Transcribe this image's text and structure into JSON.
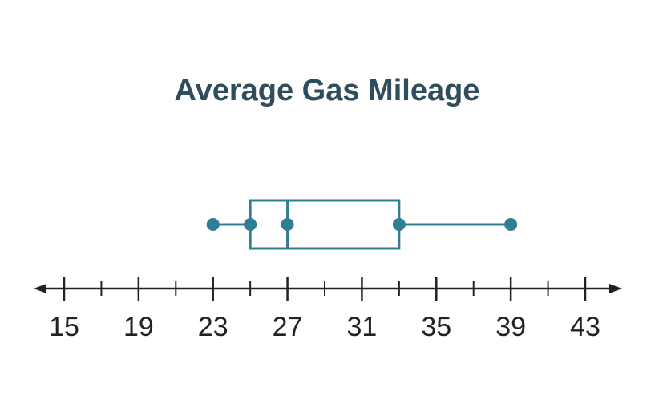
{
  "chart_data": {
    "type": "box",
    "title": "Average Gas Mileage",
    "box": {
      "min": 23,
      "q1": 25,
      "median": 27,
      "q3": 33,
      "max": 39
    },
    "color": "#2f7e93",
    "xlim": [
      15,
      43
    ],
    "xticks": [
      15,
      19,
      23,
      27,
      31,
      35,
      39,
      43
    ],
    "xminorticks": [
      17,
      21,
      25,
      29,
      33,
      37,
      41
    ]
  }
}
